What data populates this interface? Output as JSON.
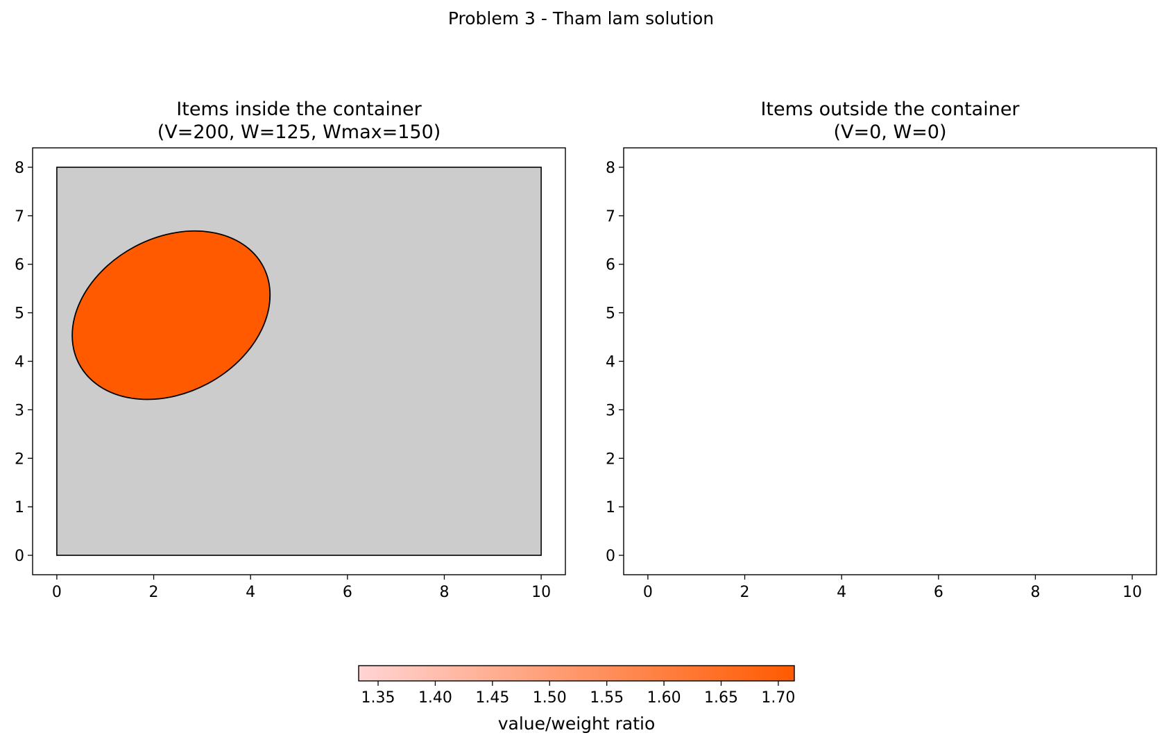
{
  "chart_data": {
    "type": "knapsack-packing",
    "suptitle": "Problem 3 - Tham lam solution",
    "panels": [
      {
        "id": "inside",
        "title_line1": "Items inside the container",
        "title_line2": "(V=200, W=125, Wmax=150)",
        "xlim": [
          -0.5,
          10.5
        ],
        "ylim": [
          -0.4,
          8.4
        ],
        "xticks": [
          0,
          2,
          4,
          6,
          8,
          10
        ],
        "yticks": [
          0,
          1,
          2,
          3,
          4,
          5,
          6,
          7,
          8
        ],
        "container": {
          "x": 0,
          "y": 0,
          "width": 10,
          "height": 8,
          "fill": "#cccccc"
        },
        "items": [
          {
            "shape": "ellipse",
            "cx": 2.36,
            "cy": 4.95,
            "rx": 2.15,
            "ry": 1.6,
            "angle_deg": 28,
            "fill": "#ff5a00",
            "ratio": 1.71
          }
        ]
      },
      {
        "id": "outside",
        "title_line1": "Items outside the container",
        "title_line2": "(V=0, W=0)",
        "xlim": [
          -0.5,
          10.5
        ],
        "ylim": [
          -0.4,
          8.4
        ],
        "xticks": [
          0,
          2,
          4,
          6,
          8,
          10
        ],
        "yticks": [
          0,
          1,
          2,
          3,
          4,
          5,
          6,
          7,
          8
        ],
        "container": null,
        "items": []
      }
    ],
    "colorbar": {
      "label": "value/weight ratio",
      "min": 1.333,
      "max": 1.714,
      "ticks": [
        "1.35",
        "1.40",
        "1.45",
        "1.50",
        "1.55",
        "1.60",
        "1.65",
        "1.70"
      ],
      "color_low": "#ffd4d4",
      "color_high": "#ff5a00"
    }
  }
}
